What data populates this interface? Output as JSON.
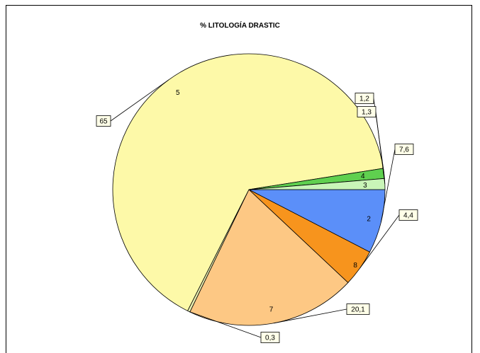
{
  "chart_data": {
    "type": "pie",
    "title": "% LITOLOGÍA DRASTIC",
    "slices": [
      {
        "category": "2",
        "value": 7.6,
        "value_label": "7,6",
        "color": "#5b8ff9"
      },
      {
        "category": "8",
        "value": 4.4,
        "value_label": "4,4",
        "color": "#f7941d"
      },
      {
        "category": "7",
        "value": 20.1,
        "value_label": "20,1",
        "color": "#fdc884"
      },
      {
        "category": "",
        "value": 0.3,
        "value_label": "0,3",
        "color": "#e8efb0"
      },
      {
        "category": "5",
        "value": 65,
        "value_label": "65",
        "color": "#fdf9a8"
      },
      {
        "category": "4",
        "value": 1.2,
        "value_label": "1,2",
        "color": "#5fd04f"
      },
      {
        "category": "3",
        "value": 1.3,
        "value_label": "1,3",
        "color": "#c9f5b8"
      }
    ],
    "legend": "none",
    "start_angle_deg": 0,
    "direction": "clockwise"
  }
}
